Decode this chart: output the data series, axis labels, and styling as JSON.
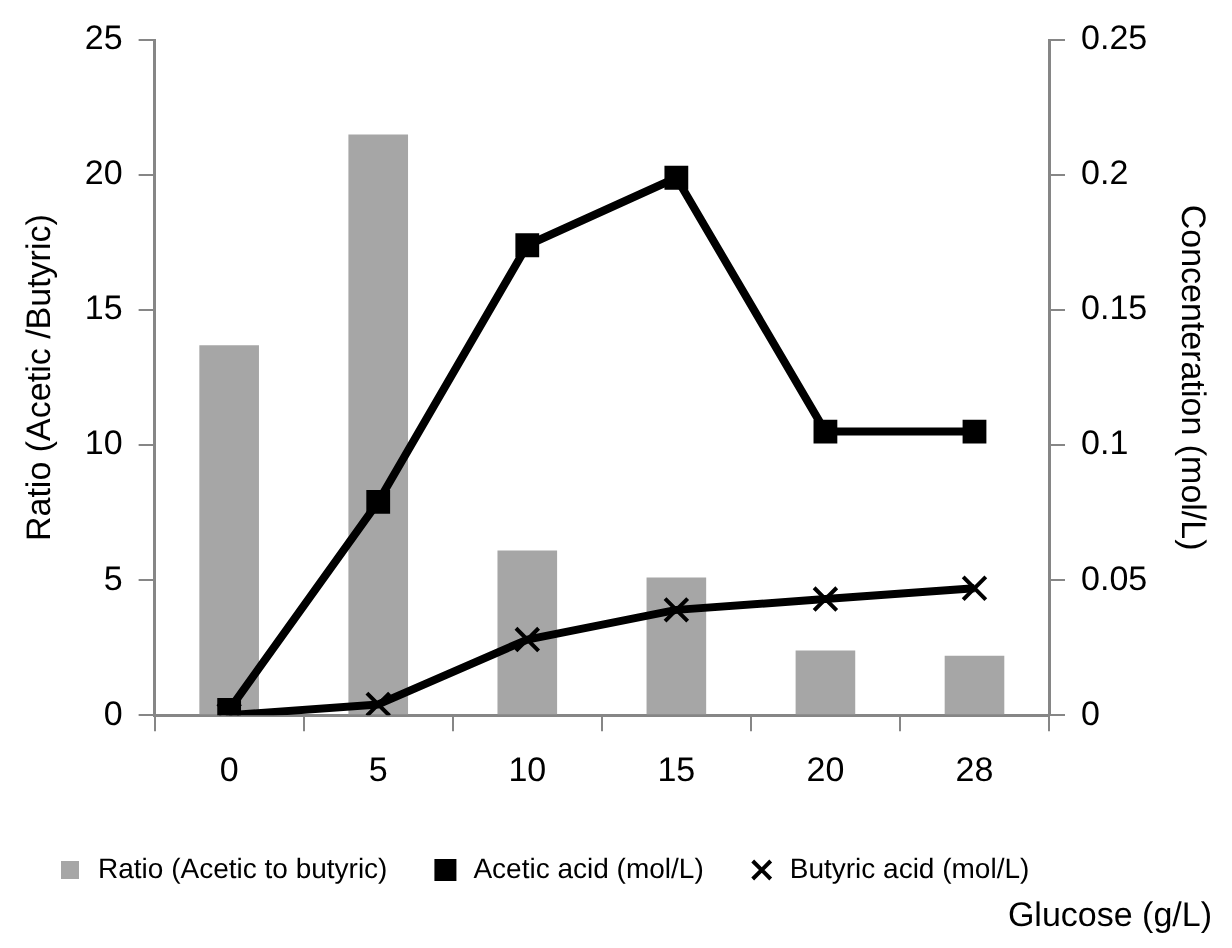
{
  "chart_data": {
    "type": "bar",
    "xlabel": "Glucose (g/L)",
    "ylabel": "Ratio (Acetic /Butyric)",
    "y2label": "Concenteration (mol/L)",
    "categories": [
      "0",
      "5",
      "10",
      "15",
      "20",
      "28"
    ],
    "series": [
      {
        "name": "Ratio (Acetic to butyric)",
        "color": "#a6a6a6",
        "values": [
          13.7,
          21.5,
          6.1,
          5.1,
          2.4,
          2.2
        ]
      },
      {
        "name": "Acetic acid (mol/L)",
        "type": "line",
        "axis": "y2",
        "color": "#000000",
        "marker": "square",
        "line_style": "solid",
        "values": [
          0.002,
          0.079,
          0.174,
          0.199,
          0.105,
          0.105
        ]
      },
      {
        "name": "Butyric acid (mol/L)",
        "type": "line",
        "axis": "y2",
        "color": "#000000",
        "marker": "cross",
        "line_style": "solid",
        "values": [
          0,
          0.004,
          0.028,
          0.039,
          0.043,
          0.047
        ]
      }
    ],
    "ylim": [
      0,
      25
    ],
    "yticks": [
      0,
      5,
      10,
      15,
      20,
      25
    ],
    "y2lim": [
      0,
      0.25
    ],
    "y2ticks": [
      0,
      0.05,
      0.1,
      0.15,
      0.2,
      0.25
    ],
    "grid": false,
    "legend": "bottom"
  }
}
